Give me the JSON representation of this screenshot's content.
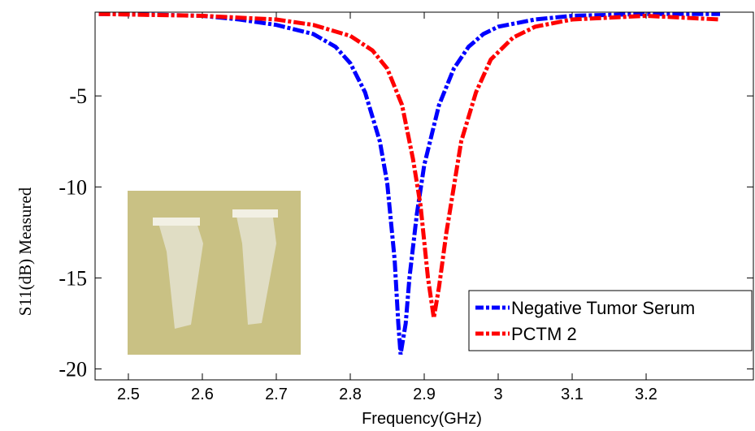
{
  "chart_data": {
    "type": "line",
    "x_label": "Frequency(GHz)",
    "y_label": "S11(dB)  Measured",
    "xlim": [
      2.455,
      3.345
    ],
    "ylim": [
      -20.6,
      -0.4
    ],
    "xticks": [
      2.5,
      2.6,
      2.7,
      2.8,
      2.9,
      3,
      3.1,
      3.2
    ],
    "yticks": [
      -5,
      -10,
      -15,
      -20
    ],
    "legend": "lower-right",
    "series": [
      {
        "name": "Negative Tumor Serum",
        "color": "#0000ff",
        "x": [
          2.46,
          2.55,
          2.6,
          2.65,
          2.7,
          2.75,
          2.78,
          2.8,
          2.82,
          2.84,
          2.85,
          2.86,
          2.865,
          2.868,
          2.875,
          2.88,
          2.89,
          2.9,
          2.92,
          2.94,
          2.96,
          2.98,
          3.0,
          3.05,
          3.1,
          3.2,
          3.3
        ],
        "values": [
          -0.5,
          -0.55,
          -0.6,
          -0.8,
          -1.1,
          -1.6,
          -2.3,
          -3.2,
          -4.8,
          -7.5,
          -9.8,
          -14,
          -17.5,
          -19.2,
          -17.5,
          -15,
          -11.5,
          -8.8,
          -5.5,
          -3.5,
          -2.3,
          -1.6,
          -1.2,
          -0.8,
          -0.6,
          -0.5,
          -0.5
        ]
      },
      {
        "name": "PCTM 2",
        "color": "#ff0000",
        "x": [
          2.46,
          2.6,
          2.7,
          2.75,
          2.8,
          2.83,
          2.85,
          2.87,
          2.885,
          2.895,
          2.905,
          2.913,
          2.92,
          2.93,
          2.94,
          2.95,
          2.97,
          2.99,
          3.02,
          3.05,
          3.1,
          3.2,
          3.3
        ],
        "values": [
          -0.5,
          -0.6,
          -0.8,
          -1.1,
          -1.7,
          -2.5,
          -3.5,
          -5.5,
          -8.5,
          -11,
          -15,
          -17.2,
          -15.5,
          -12.5,
          -10,
          -7.5,
          -4.8,
          -3,
          -1.8,
          -1.2,
          -0.8,
          -0.6,
          -0.8
        ]
      }
    ]
  }
}
